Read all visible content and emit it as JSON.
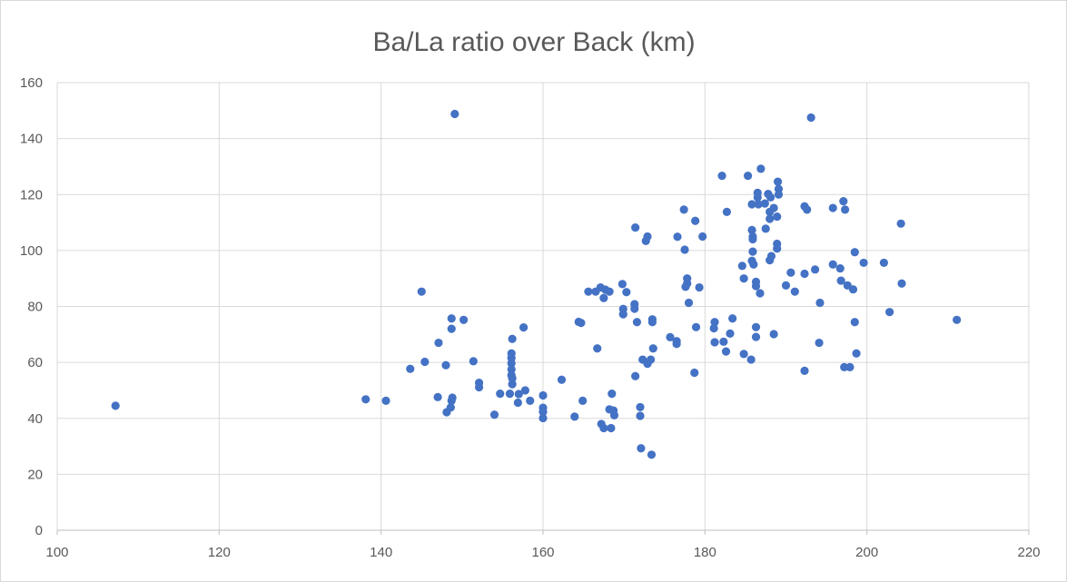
{
  "chart_data": {
    "type": "scatter",
    "title": "Ba/La ratio over Back (km)",
    "xlabel": "",
    "ylabel": "",
    "xlim": [
      100,
      220
    ],
    "ylim": [
      0,
      160
    ],
    "x_ticks": [
      100,
      120,
      140,
      160,
      180,
      200,
      220
    ],
    "y_ticks": [
      0,
      20,
      40,
      60,
      80,
      100,
      120,
      140,
      160
    ],
    "grid": true,
    "legend": "none",
    "marker_color": "#4472c4",
    "points": [
      [
        107.2,
        44.5
      ],
      [
        138.1,
        46.8
      ],
      [
        140.6,
        46.3
      ],
      [
        143.6,
        57.7
      ],
      [
        145.0,
        85.3
      ],
      [
        145.4,
        60.2
      ],
      [
        147.0,
        47.6
      ],
      [
        147.1,
        67.0
      ],
      [
        148.0,
        59.0
      ],
      [
        148.1,
        42.2
      ],
      [
        148.6,
        43.9
      ],
      [
        148.7,
        75.7
      ],
      [
        148.7,
        72.0
      ],
      [
        148.7,
        46.3
      ],
      [
        148.8,
        47.4
      ],
      [
        149.1,
        148.8
      ],
      [
        150.2,
        75.2
      ],
      [
        151.4,
        60.4
      ],
      [
        152.1,
        52.7
      ],
      [
        152.1,
        51.1
      ],
      [
        154.0,
        41.3
      ],
      [
        154.7,
        48.8
      ],
      [
        155.9,
        48.8
      ],
      [
        156.1,
        63.2
      ],
      [
        156.1,
        61.6
      ],
      [
        156.1,
        59.7
      ],
      [
        156.1,
        57.5
      ],
      [
        156.1,
        55.4
      ],
      [
        156.2,
        54.3
      ],
      [
        156.2,
        52.2
      ],
      [
        156.2,
        68.4
      ],
      [
        156.9,
        45.6
      ],
      [
        157.0,
        48.7
      ],
      [
        157.6,
        72.5
      ],
      [
        157.8,
        50.0
      ],
      [
        158.4,
        46.3
      ],
      [
        160.0,
        48.2
      ],
      [
        160.0,
        43.8
      ],
      [
        160.0,
        42.3
      ],
      [
        160.0,
        40.1
      ],
      [
        162.3,
        53.8
      ],
      [
        163.9,
        40.6
      ],
      [
        164.4,
        74.5
      ],
      [
        164.7,
        74.1
      ],
      [
        164.9,
        46.3
      ],
      [
        165.6,
        85.3
      ],
      [
        166.5,
        85.3
      ],
      [
        166.7,
        65.0
      ],
      [
        167.1,
        86.8
      ],
      [
        167.2,
        38.0
      ],
      [
        167.5,
        36.5
      ],
      [
        167.5,
        83.0
      ],
      [
        167.7,
        86.0
      ],
      [
        168.2,
        43.2
      ],
      [
        168.2,
        85.3
      ],
      [
        168.4,
        36.5
      ],
      [
        168.5,
        48.8
      ],
      [
        168.7,
        42.8
      ],
      [
        168.8,
        41.1
      ],
      [
        169.8,
        88.0
      ],
      [
        169.9,
        79.1
      ],
      [
        169.9,
        77.2
      ],
      [
        170.3,
        85.1
      ],
      [
        171.3,
        80.8
      ],
      [
        171.3,
        79.2
      ],
      [
        171.4,
        55.1
      ],
      [
        171.4,
        108.2
      ],
      [
        171.6,
        74.4
      ],
      [
        172.0,
        40.9
      ],
      [
        172.0,
        44.0
      ],
      [
        172.1,
        29.3
      ],
      [
        172.3,
        61.0
      ],
      [
        172.7,
        103.4
      ],
      [
        172.9,
        105.0
      ],
      [
        172.9,
        59.5
      ],
      [
        173.3,
        61.0
      ],
      [
        173.4,
        27.0
      ],
      [
        173.5,
        74.4
      ],
      [
        173.5,
        75.4
      ],
      [
        173.6,
        65.0
      ],
      [
        175.7,
        69.0
      ],
      [
        176.5,
        67.6
      ],
      [
        176.5,
        66.6
      ],
      [
        176.6,
        104.9
      ],
      [
        177.4,
        114.6
      ],
      [
        177.5,
        100.3
      ],
      [
        177.6,
        87.0
      ],
      [
        177.8,
        90.0
      ],
      [
        177.8,
        88.2
      ],
      [
        178.0,
        81.3
      ],
      [
        178.7,
        56.3
      ],
      [
        178.8,
        110.6
      ],
      [
        178.9,
        72.6
      ],
      [
        179.3,
        86.8
      ],
      [
        179.7,
        105.0
      ],
      [
        181.1,
        72.2
      ],
      [
        181.2,
        74.4
      ],
      [
        181.2,
        67.2
      ],
      [
        182.1,
        126.7
      ],
      [
        182.3,
        67.4
      ],
      [
        182.6,
        63.9
      ],
      [
        182.7,
        113.8
      ],
      [
        183.1,
        70.3
      ],
      [
        183.4,
        75.7
      ],
      [
        184.6,
        94.5
      ],
      [
        184.8,
        90.0
      ],
      [
        184.8,
        63.0
      ],
      [
        185.3,
        126.7
      ],
      [
        185.7,
        61.0
      ],
      [
        185.8,
        96.3
      ],
      [
        185.8,
        116.5
      ],
      [
        185.8,
        107.3
      ],
      [
        185.9,
        105.0
      ],
      [
        185.9,
        104.0
      ],
      [
        185.9,
        99.6
      ],
      [
        186.0,
        95.0
      ],
      [
        186.3,
        88.8
      ],
      [
        186.3,
        87.3
      ],
      [
        186.3,
        72.6
      ],
      [
        186.3,
        69.1
      ],
      [
        186.5,
        120.6
      ],
      [
        186.5,
        119.0
      ],
      [
        186.6,
        116.5
      ],
      [
        186.8,
        84.7
      ],
      [
        186.9,
        129.2
      ],
      [
        187.4,
        116.8
      ],
      [
        187.5,
        107.8
      ],
      [
        187.8,
        120.2
      ],
      [
        188.0,
        111.3
      ],
      [
        188.0,
        113.8
      ],
      [
        188.0,
        96.5
      ],
      [
        188.1,
        119.0
      ],
      [
        188.2,
        98.0
      ],
      [
        188.5,
        115.2
      ],
      [
        188.5,
        70.1
      ],
      [
        188.9,
        112.1
      ],
      [
        188.9,
        102.4
      ],
      [
        188.9,
        100.7
      ],
      [
        189.0,
        124.6
      ],
      [
        189.1,
        122.0
      ],
      [
        189.1,
        120.0
      ],
      [
        190.0,
        87.5
      ],
      [
        190.6,
        92.1
      ],
      [
        191.1,
        85.3
      ],
      [
        192.3,
        115.8
      ],
      [
        192.3,
        91.7
      ],
      [
        192.3,
        57.0
      ],
      [
        192.6,
        114.6
      ],
      [
        193.1,
        147.5
      ],
      [
        193.6,
        93.2
      ],
      [
        194.1,
        67.0
      ],
      [
        194.2,
        81.3
      ],
      [
        195.8,
        115.2
      ],
      [
        195.8,
        95.0
      ],
      [
        196.7,
        93.6
      ],
      [
        196.8,
        89.2
      ],
      [
        197.1,
        117.6
      ],
      [
        197.2,
        58.3
      ],
      [
        197.3,
        114.6
      ],
      [
        197.6,
        87.5
      ],
      [
        197.9,
        58.3
      ],
      [
        198.3,
        86.1
      ],
      [
        198.5,
        74.4
      ],
      [
        198.5,
        99.4
      ],
      [
        198.7,
        63.2
      ],
      [
        199.6,
        95.6
      ],
      [
        202.1,
        95.6
      ],
      [
        202.8,
        78.0
      ],
      [
        204.2,
        109.6
      ],
      [
        204.3,
        88.2
      ],
      [
        211.1,
        75.2
      ]
    ]
  }
}
